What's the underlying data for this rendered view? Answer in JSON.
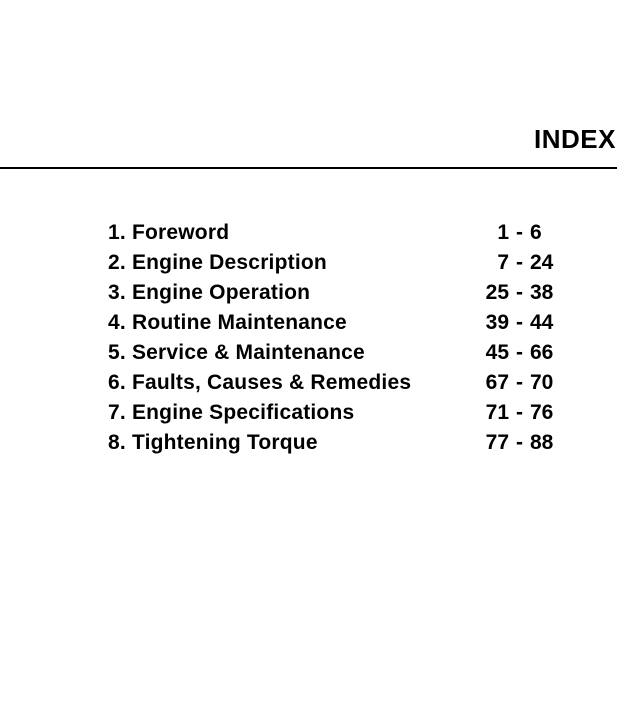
{
  "page": {
    "title": "INDEX"
  },
  "colors": {
    "background": "#ffffff",
    "text": "#000000",
    "rule": "#000000"
  },
  "toc": {
    "separator": "-",
    "items": [
      {
        "label": "1. Foreword",
        "page_start": "1",
        "page_end": "6"
      },
      {
        "label": "2. Engine Description",
        "page_start": "7",
        "page_end": "24"
      },
      {
        "label": "3. Engine Operation",
        "page_start": "25",
        "page_end": "38"
      },
      {
        "label": "4. Routine Maintenance",
        "page_start": "39",
        "page_end": "44"
      },
      {
        "label": "5. Service & Maintenance",
        "page_start": "45",
        "page_end": "66"
      },
      {
        "label": "6. Faults, Causes & Remedies",
        "page_start": "67",
        "page_end": "70"
      },
      {
        "label": "7. Engine Specifications",
        "page_start": "71",
        "page_end": "76"
      },
      {
        "label": "8. Tightening Torque",
        "page_start": "77",
        "page_end": "88"
      }
    ]
  }
}
